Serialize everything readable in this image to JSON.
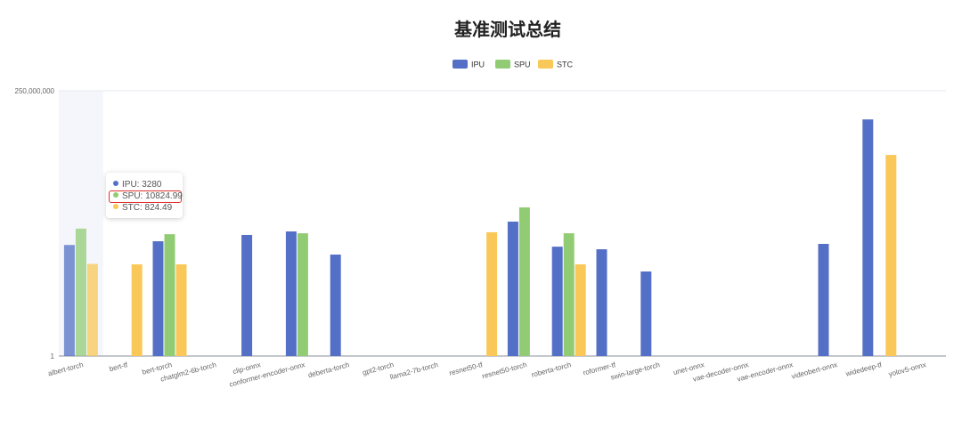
{
  "chart_data": {
    "type": "bar",
    "title": "基准测试总结",
    "yscale": "log",
    "ylim": [
      1,
      250000000
    ],
    "ytick_labels": [
      "1",
      "250,000,000"
    ],
    "grid": true,
    "legend_position": "top-center",
    "categories": [
      "albert-torch",
      "bert-tf",
      "bert-torch",
      "chatglm2-6b-torch",
      "clip-onnx",
      "conformer-encoder-onnx",
      "deberta-torch",
      "gpt2-torch",
      "llama2-7b-torch",
      "resnet50-tf",
      "resnet50-torch",
      "roberta-torch",
      "roformer-tf",
      "swin-large-torch",
      "unet-onnx",
      "vae-decoder-onnx",
      "vae-encoder-onnx",
      "videobert-onnx",
      "widedeep-tf",
      "yolov5-onnx"
    ],
    "series": [
      {
        "name": "IPU",
        "color": "#5470c6",
        "values": [
          3280,
          null,
          4300,
          null,
          6800,
          8800,
          1630,
          null,
          null,
          null,
          18000,
          2900,
          2400,
          475,
          null,
          null,
          null,
          3550,
          31000000,
          null
        ]
      },
      {
        "name": "SPU",
        "color": "#91cc75",
        "values": [
          10824.99,
          null,
          7200,
          null,
          null,
          7700,
          null,
          null,
          null,
          null,
          50700,
          7700,
          null,
          null,
          null,
          null,
          null,
          null,
          null,
          null
        ]
      },
      {
        "name": "STC",
        "color": "#fac858",
        "values": [
          824.49,
          800,
          800,
          null,
          null,
          null,
          null,
          null,
          null,
          8300,
          null,
          800,
          null,
          null,
          null,
          null,
          null,
          null,
          2330000,
          null
        ]
      }
    ],
    "hovered_category": "albert-torch",
    "tooltip": {
      "rows": [
        "IPU: 3280",
        "SPU: 10824.99",
        "STC: 824.49"
      ],
      "highlighted_row": "SPU: 10824.99"
    }
  }
}
